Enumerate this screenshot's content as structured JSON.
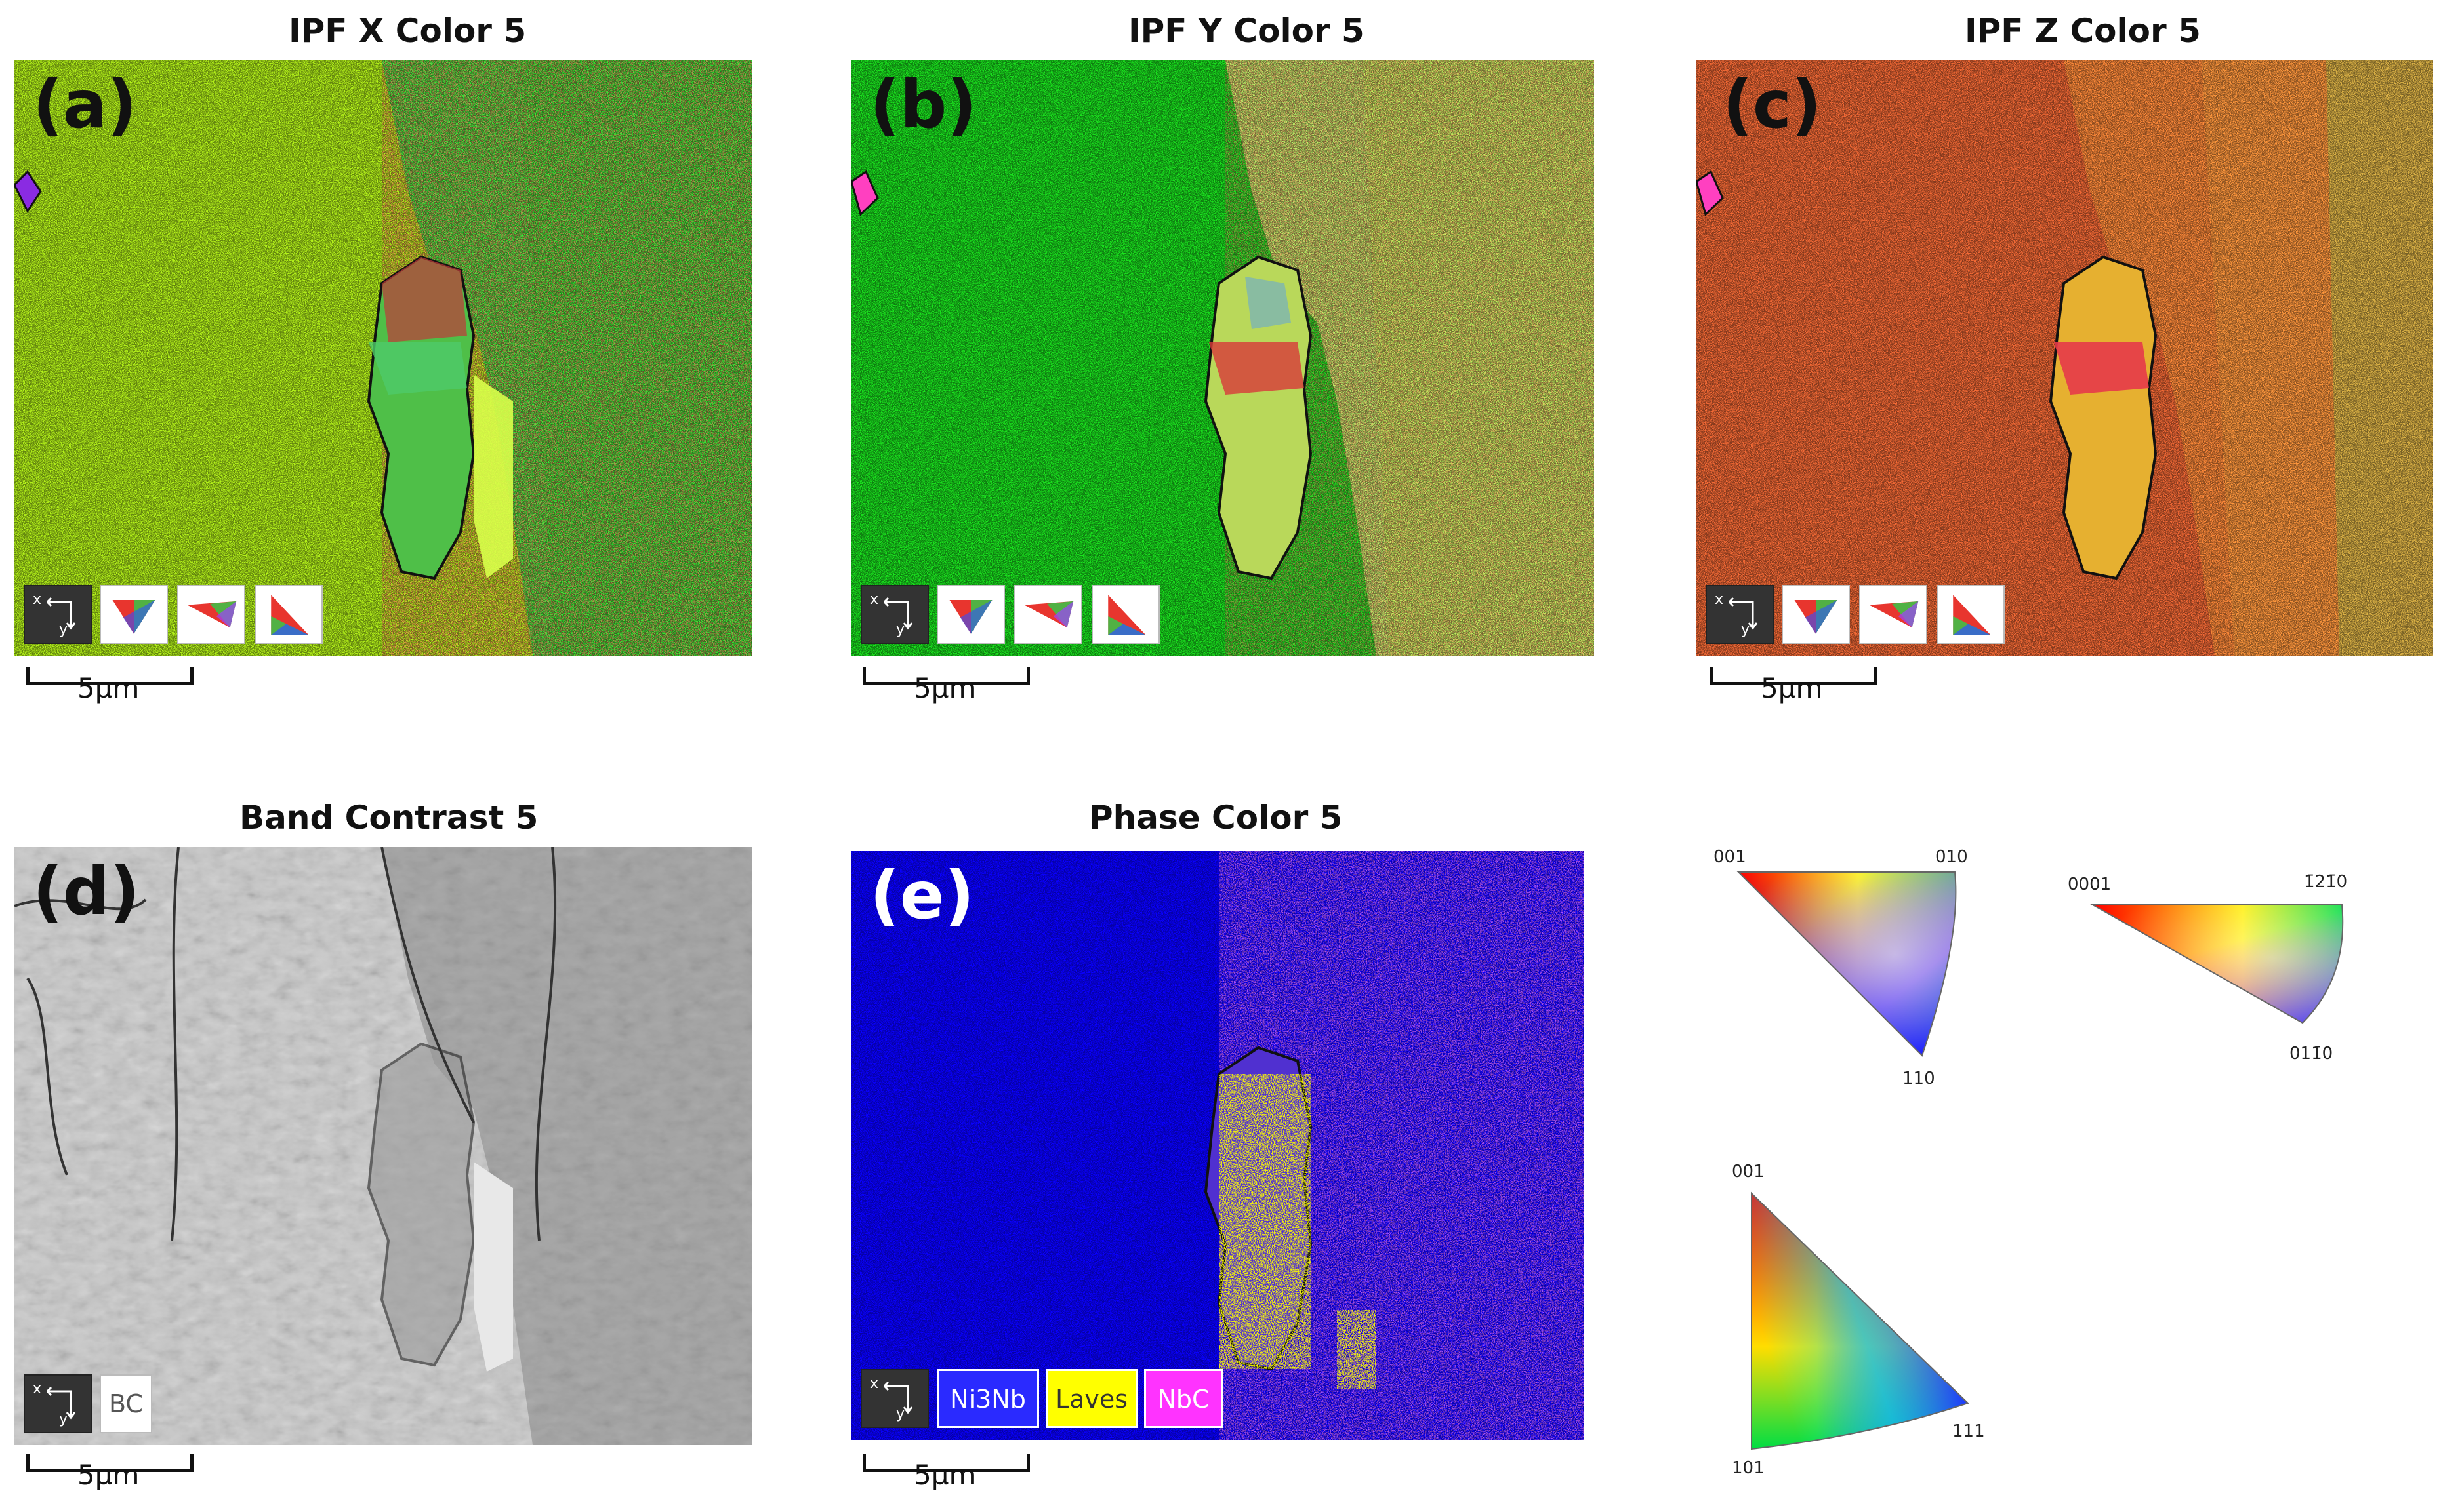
{
  "panels": {
    "a": {
      "title": "IPF X Color 5",
      "label": "(a)",
      "scale": "5µm"
    },
    "b": {
      "title": "IPF Y Color 5",
      "label": "(b)",
      "scale": "5µm"
    },
    "c": {
      "title": "IPF Z Color 5",
      "label": "(c)",
      "scale": "5µm"
    },
    "d": {
      "title": "Band Contrast 5",
      "label": "(d)",
      "scale": "5µm",
      "legend": "BC"
    },
    "e": {
      "title": "Phase Color 5",
      "label": "(e)",
      "scale": "5µm",
      "legend": [
        "Ni3Nb",
        "Laves",
        "NbC"
      ]
    }
  },
  "axis_glyph": {
    "x": "x",
    "y": "y"
  },
  "ipf_keys": {
    "cubic_100": {
      "corner_top_left": "001",
      "corner_top_right": "010",
      "corner_bottom": "110"
    },
    "hex": {
      "corner_left": "0001",
      "corner_right": "1̄21̄0",
      "corner_bottom": "011̄0"
    },
    "cubic_111": {
      "corner_top": "001",
      "corner_right": "111",
      "corner_bottom": "101"
    }
  },
  "colors": {
    "label_dark": "#111111",
    "label_light": "#ffffff",
    "ni3nb": "#2a2aff",
    "laves": "#ffff00",
    "nbc": "#ff33ff"
  }
}
